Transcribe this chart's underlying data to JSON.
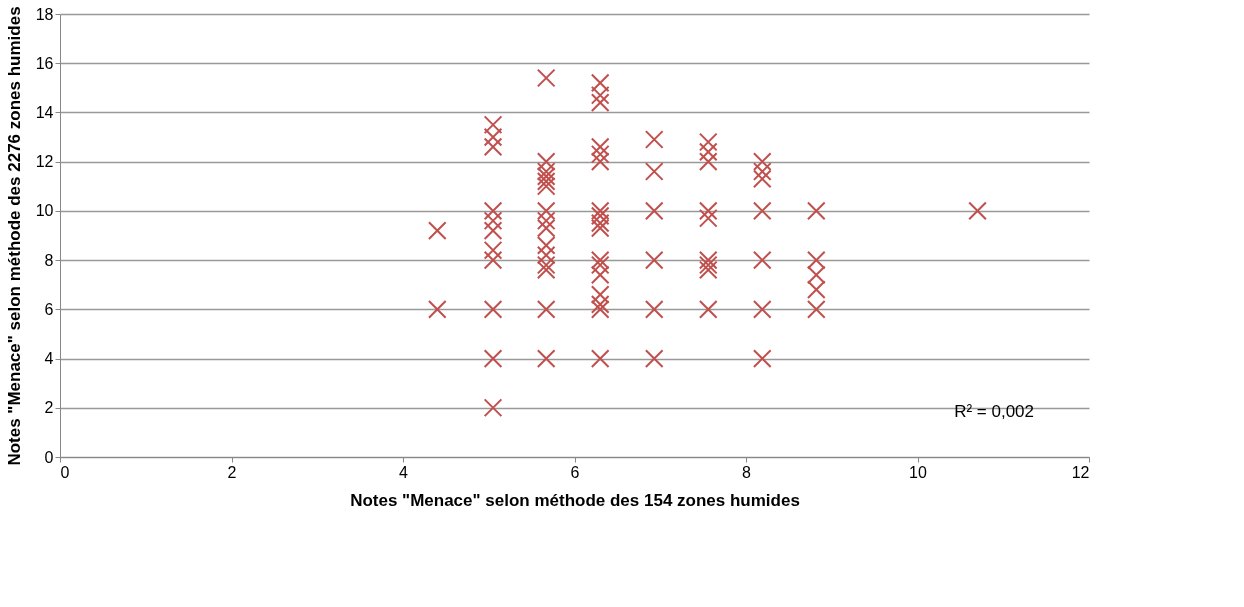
{
  "chart_data": {
    "type": "scatter",
    "xlabel": "Notes \"Menace\" selon méthode des 154 zones humides",
    "ylabel": "Notes \"Menace\" selon méthode des 2276 zones humides",
    "x": [
      4.4,
      4.4,
      5.05,
      5.05,
      5.05,
      5.05,
      5.05,
      5.05,
      5.05,
      5.05,
      5.05,
      5.05,
      5.05,
      5.67,
      5.67,
      5.67,
      5.67,
      5.67,
      5.67,
      5.67,
      5.67,
      5.67,
      5.67,
      5.67,
      5.67,
      5.67,
      5.67,
      5.67,
      6.3,
      6.3,
      6.3,
      6.3,
      6.3,
      6.3,
      6.3,
      6.3,
      6.3,
      6.3,
      6.3,
      6.3,
      6.3,
      6.3,
      6.3,
      6.3,
      6.3,
      6.93,
      6.93,
      6.93,
      6.93,
      6.93,
      6.93,
      7.56,
      7.56,
      7.56,
      7.56,
      7.56,
      7.56,
      7.56,
      7.56,
      7.56,
      8.19,
      8.19,
      8.19,
      8.19,
      8.19,
      8.19,
      8.19,
      8.82,
      8.82,
      8.82,
      8.82,
      8.82,
      10.7
    ],
    "series": [
      {
        "color": "#c0504d",
        "values": [
          9.2,
          6,
          13.5,
          13.0,
          12.6,
          10,
          9.6,
          9.2,
          8.4,
          8.0,
          6,
          4,
          2,
          15.4,
          12.0,
          11.6,
          11.4,
          11.2,
          11.0,
          10.0,
          9.6,
          9.3,
          8.6,
          8.2,
          7.8,
          7.6,
          6,
          4,
          15.2,
          14.7,
          14.4,
          12.6,
          12.3,
          12.0,
          10,
          9.8,
          9.5,
          9.3,
          8,
          7.8,
          7.4,
          6.6,
          6.2,
          6,
          4,
          12.9,
          11.6,
          10,
          8,
          6,
          4,
          12.8,
          12.4,
          12.0,
          10,
          9.7,
          8,
          7.8,
          7.6,
          6,
          12.0,
          11.6,
          11.3,
          10,
          8,
          6,
          4,
          10,
          8,
          7.4,
          6.8,
          6,
          10
        ]
      }
    ],
    "xlim": [
      0,
      12
    ],
    "xticks": [
      0,
      2,
      4,
      6,
      8,
      10,
      12
    ],
    "ylim": [
      0,
      18
    ],
    "yticks": [
      0,
      2,
      4,
      6,
      8,
      10,
      12,
      14,
      16,
      18
    ],
    "grid": "y",
    "marker": "cross",
    "legend": false,
    "annotations": [
      "R² = 0,002"
    ]
  }
}
